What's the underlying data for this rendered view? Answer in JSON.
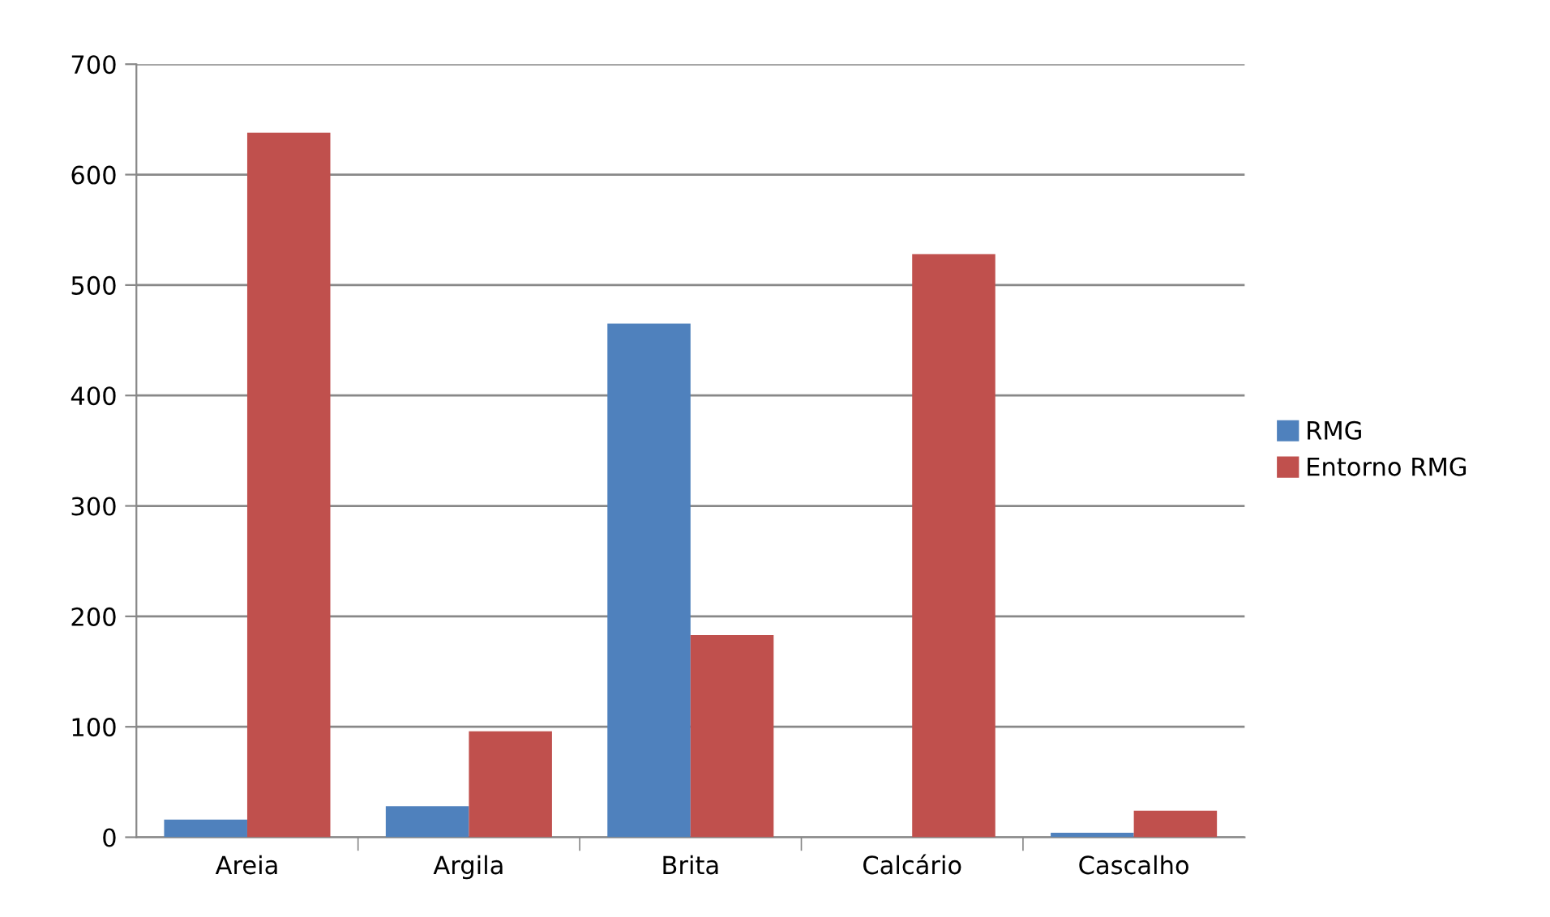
{
  "chart_data": {
    "type": "bar",
    "categories": [
      "Areia",
      "Argila",
      "Brita",
      "Calcário",
      "Cascalho"
    ],
    "series": [
      {
        "name": "RMG",
        "color": "#4f81bd",
        "values": [
          16,
          28,
          465,
          0,
          4
        ]
      },
      {
        "name": "Entorno RMG",
        "color": "#c0504d",
        "values": [
          638,
          96,
          183,
          528,
          24
        ]
      }
    ],
    "ylim": [
      0,
      700
    ],
    "yticks": [
      0,
      100,
      200,
      300,
      400,
      500,
      600,
      700
    ],
    "grid": "y",
    "legend": "right"
  }
}
